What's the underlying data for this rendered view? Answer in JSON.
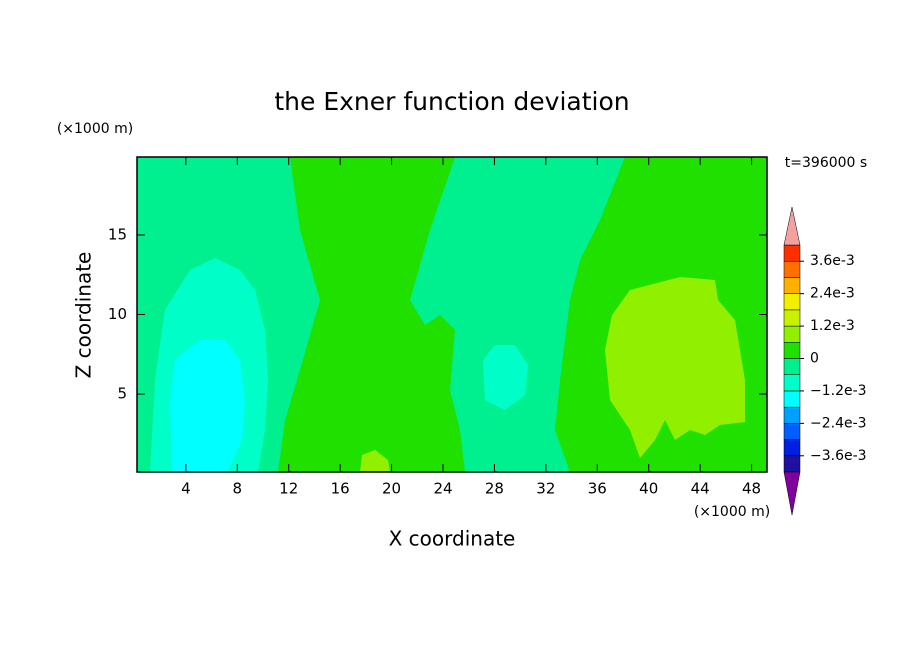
{
  "chart_data": {
    "type": "contour",
    "title": "the Exner function deviation",
    "x_label": "X coordinate",
    "y_label": "Z coordinate",
    "x_unit": "(×1000 m)",
    "y_unit": "(×1000 m)",
    "time_label": "t=396000 s",
    "xlim": [
      0.2,
      49.2
    ],
    "ylim": [
      0.1,
      19.9
    ],
    "xticks": [
      4,
      8,
      12,
      16,
      20,
      24,
      28,
      32,
      36,
      40,
      44,
      48
    ],
    "yticks": [
      5,
      10,
      15
    ],
    "levels": [
      -0.0042,
      -0.0036,
      -0.003,
      -0.0024,
      -0.0018,
      -0.0012,
      -0.0006,
      0,
      0.0006,
      0.0012,
      0.0018,
      0.0024,
      0.003,
      0.0036,
      0.0042
    ],
    "colors": [
      "#8000a0",
      "#2010a0",
      "#0020e0",
      "#0060ff",
      "#00a0ff",
      "#00ffff",
      "#00ffc8",
      "#00f090",
      "#20e000",
      "#90f000",
      "#c8f000",
      "#f0f000",
      "#ffb000",
      "#ff7000",
      "#ff3000",
      "#f4a0a0"
    ],
    "colorbar_ticks": [
      {
        "value": 0.0036,
        "label": "3.6e-3"
      },
      {
        "value": 0.0024,
        "label": "2.4e-3"
      },
      {
        "value": 0.0012,
        "label": "1.2e-3"
      },
      0,
      {
        "value": -0.0012,
        "label": "−1.2e-3"
      },
      {
        "value": -0.0024,
        "label": "−2.4e-3"
      },
      {
        "value": -0.0036,
        "label": "−3.6e-3"
      }
    ]
  }
}
